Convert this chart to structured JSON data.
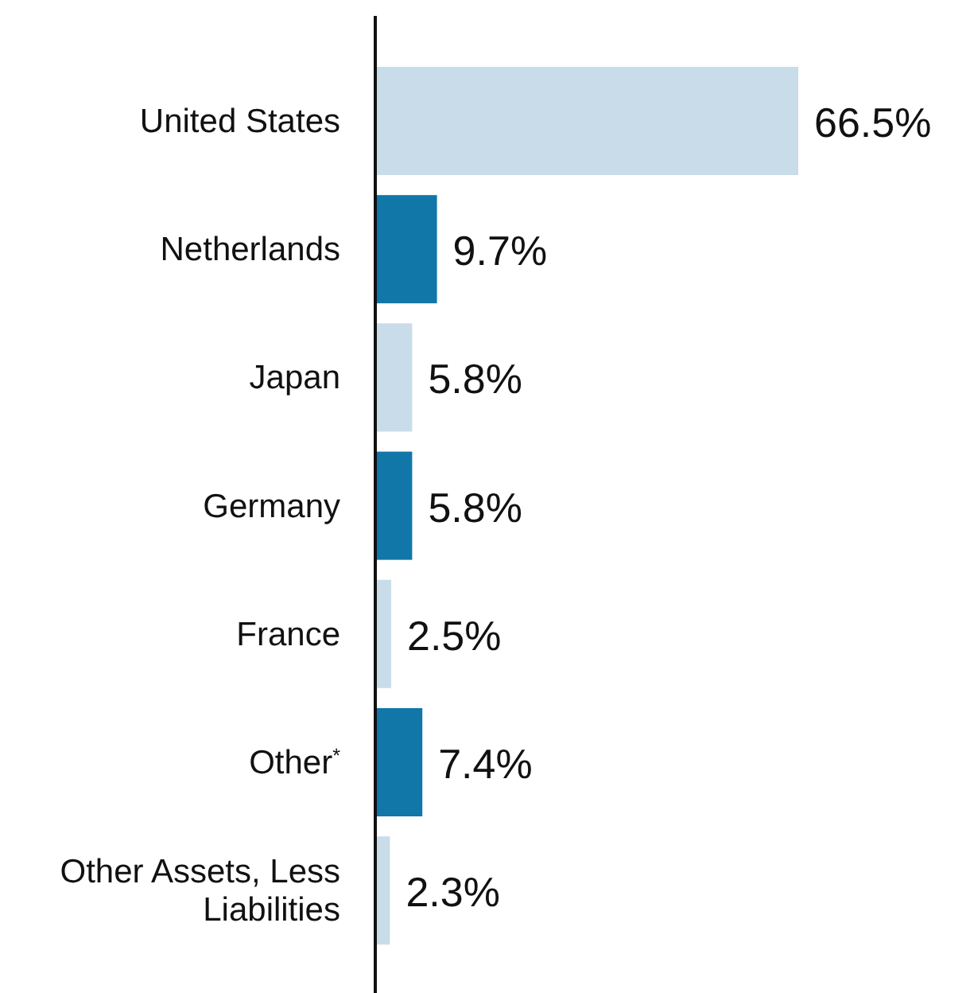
{
  "chart_data": {
    "type": "bar",
    "orientation": "horizontal",
    "categories": [
      "United States",
      "Netherlands",
      "Japan",
      "Germany",
      "France",
      "Other$^{*}$",
      "Other Assets, Less Liabilities"
    ],
    "values": [
      66.5,
      9.7,
      5.8,
      5.8,
      2.5,
      7.4,
      2.3
    ],
    "colors": [
      "#c9dcea",
      "#1077a8",
      "#c9dcea",
      "#1077a8",
      "#c9dcea",
      "#1077a8",
      "#c9dcea"
    ],
    "value_labels": [
      "66.5%",
      "9.7%",
      "5.8%",
      "5.8%",
      "2.5%",
      "7.4%",
      "2.3%"
    ]
  }
}
